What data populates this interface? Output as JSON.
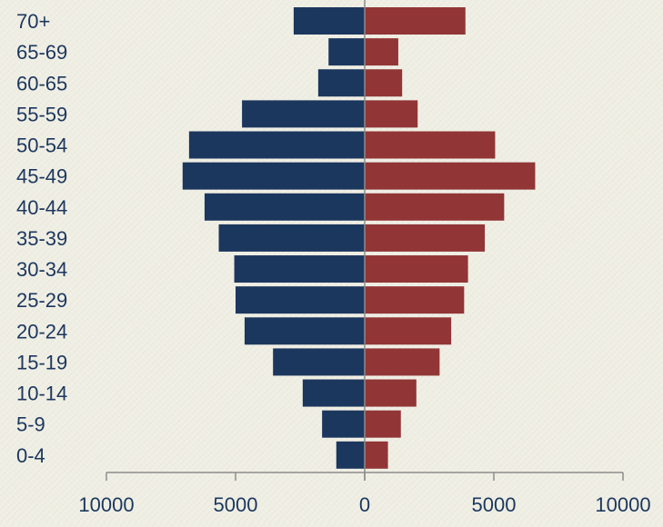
{
  "chart_data": {
    "type": "bar",
    "orientation": "horizontal",
    "layout": "population-pyramid",
    "categories": [
      "0-4",
      "5-9",
      "10-14",
      "15-19",
      "20-24",
      "25-29",
      "30-34",
      "35-39",
      "40-44",
      "45-49",
      "50-54",
      "55-59",
      "60-65",
      "65-69",
      "70+"
    ],
    "series": [
      {
        "side": "left",
        "color": "#1c375e",
        "values": [
          1100,
          1650,
          2400,
          3550,
          4650,
          5000,
          5050,
          5650,
          6200,
          7050,
          6800,
          4750,
          1800,
          1400,
          2750
        ]
      },
      {
        "side": "right",
        "color": "#913536",
        "values": [
          900,
          1400,
          2000,
          2900,
          3350,
          3850,
          4000,
          4650,
          5400,
          6600,
          5050,
          2050,
          1450,
          1300,
          3900
        ]
      }
    ],
    "xlim": [
      -10000,
      10000
    ],
    "x_ticks": [
      -10000,
      -5000,
      0,
      5000,
      10000
    ],
    "x_tick_labels": [
      "10000",
      "5000",
      "0",
      "5000",
      "10000"
    ],
    "title": "",
    "xlabel": "",
    "ylabel": "",
    "grid": false,
    "legend": "none",
    "colors": {
      "background": "#efeee3",
      "axis": "#8c8c8c",
      "label": "#1c375e"
    }
  }
}
